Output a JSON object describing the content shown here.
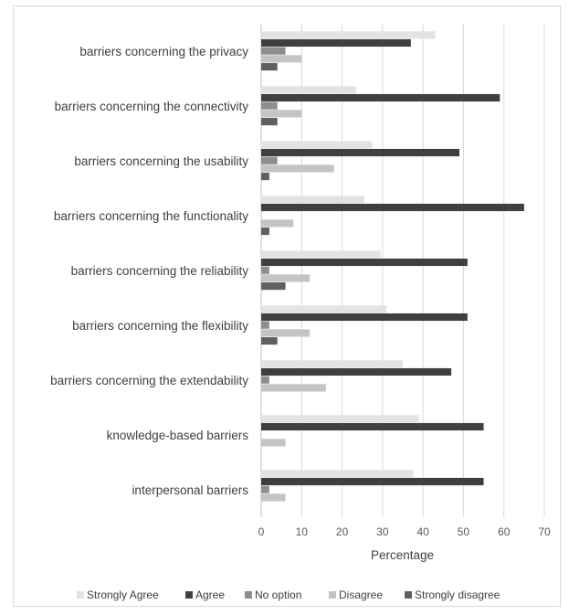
{
  "chart_data": {
    "type": "bar",
    "orientation": "horizontal",
    "categories": [
      "barriers concerning the privacy",
      "barriers concerning the connectivity",
      "barriers concerning the usability",
      "barriers concerning the functionality",
      "barriers concerning the reliability",
      "barriers concerning the flexibility",
      "barriers concerning the extendability",
      "knowledge-based barriers",
      "interpersonal barriers"
    ],
    "series": [
      {
        "name": "Strongly Agree",
        "color": "#e3e3e3",
        "values": [
          43,
          23.5,
          27.5,
          25.5,
          29.5,
          31,
          35,
          39,
          37.5
        ]
      },
      {
        "name": "Agree",
        "color": "#3f3f3f",
        "values": [
          37,
          59,
          49,
          65,
          51,
          51,
          47,
          55,
          55
        ]
      },
      {
        "name": "No option",
        "color": "#8e8e8e",
        "values": [
          6,
          4,
          4,
          0,
          2,
          2,
          2,
          0,
          2
        ]
      },
      {
        "name": "Disagree",
        "color": "#c4c4c4",
        "values": [
          10,
          10,
          18,
          8,
          12,
          12,
          16,
          6,
          6
        ]
      },
      {
        "name": "Strongly disagree",
        "color": "#5f5f5f",
        "values": [
          4,
          4,
          2,
          2,
          6,
          4,
          0,
          0,
          0
        ]
      }
    ],
    "xlabel": "Percentage",
    "xlim": [
      0,
      70
    ],
    "xticks": [
      "0",
      "10",
      "20",
      "30",
      "40",
      "50",
      "60",
      "70"
    ],
    "grid": true,
    "legend_position": "bottom"
  }
}
